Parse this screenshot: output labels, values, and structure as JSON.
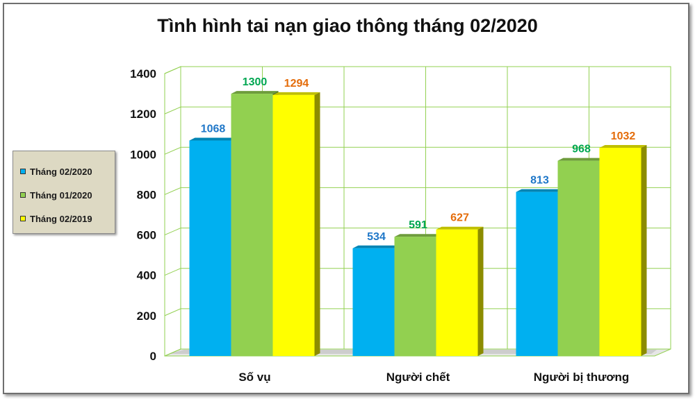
{
  "chart_data": {
    "type": "bar",
    "title": "Tình hình tai nạn giao thông tháng 02/2020",
    "categories": [
      "Số vụ",
      "Người chết",
      "Người bị thương"
    ],
    "series": [
      {
        "name": "Tháng 02/2020",
        "values": [
          1068,
          534,
          813
        ],
        "color": "#00b0f0",
        "label_color": "#1f77c8"
      },
      {
        "name": "Tháng 01/2020",
        "values": [
          1300,
          591,
          968
        ],
        "color": "#92d050",
        "label_color": "#00a651"
      },
      {
        "name": "Tháng 02/2019",
        "values": [
          1294,
          627,
          1032
        ],
        "color": "#ffff00",
        "label_color": "#e46c0a"
      }
    ],
    "yticks": [
      "0",
      "200",
      "400",
      "600",
      "800",
      "1000",
      "1200",
      "1400"
    ],
    "ylim": [
      0,
      1400
    ],
    "grid": true,
    "legend_position": "left",
    "wall_color": "#ffffff",
    "grid_color": "#92d050"
  }
}
